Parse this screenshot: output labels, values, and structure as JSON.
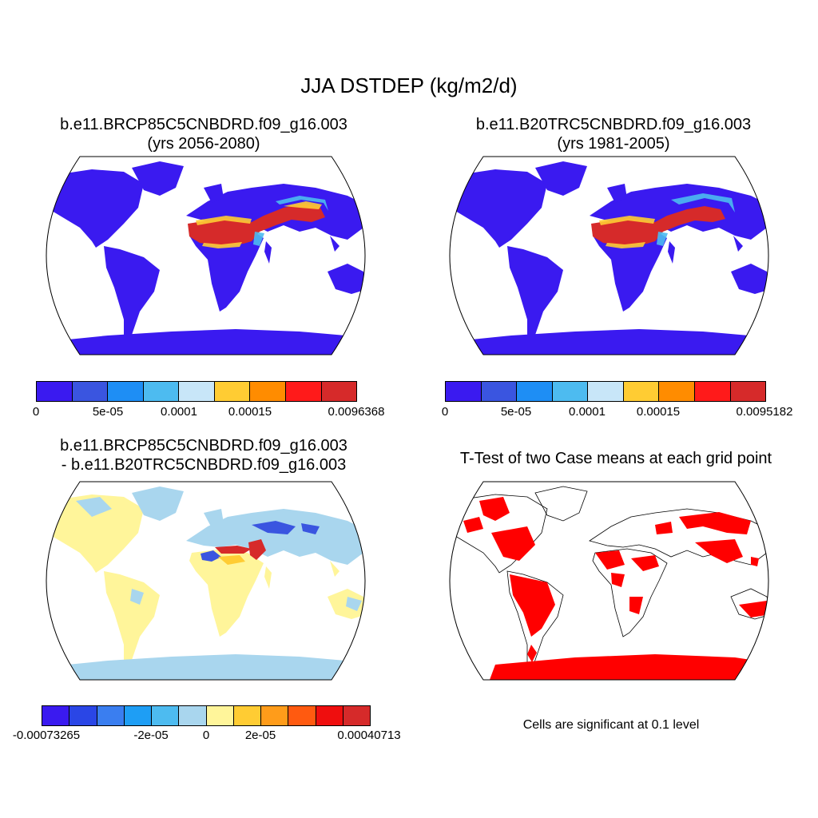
{
  "title": "JJA DSTDEP (kg/m2/d)",
  "panels": [
    {
      "line1": "b.e11.BRCP85C5CNBDRD.f09_g16.003",
      "line2": "(yrs 2056-2080)"
    },
    {
      "line1": "b.e11.B20TRC5CNBDRD.f09_g16.003",
      "line2": "(yrs 1981-2005)"
    },
    {
      "line1": "b.e11.BRCP85C5CNBDRD.f09_g16.003",
      "line2": "- b.e11.B20TRC5CNBDRD.f09_g16.003"
    },
    {
      "line1": "T-Test of two Case means at each grid point"
    }
  ],
  "colorbars": [
    {
      "colors": [
        "#3a1af0",
        "#3a55e0",
        "#1e8ef5",
        "#4dbbf0",
        "#c8e6f8",
        "#ffcc33",
        "#ff8c00",
        "#ff1a1a",
        "#d62a2a"
      ],
      "labels": [
        "0",
        "5e-05",
        "0.0001",
        "0.00015",
        "0.0096368"
      ]
    },
    {
      "colors": [
        "#3a1af0",
        "#3a55e0",
        "#1e8ef5",
        "#4dbbf0",
        "#c8e6f8",
        "#ffcc33",
        "#ff8c00",
        "#ff1a1a",
        "#d62a2a"
      ],
      "labels": [
        "0",
        "5e-05",
        "0.0001",
        "0.00015",
        "0.0095182"
      ]
    },
    {
      "colors": [
        "#3a1af0",
        "#2a46e6",
        "#3a7ef0",
        "#1e9ef5",
        "#4dbbf0",
        "#a9d6ee",
        "#fff59a",
        "#ffcc33",
        "#ff9c1a",
        "#ff5a10",
        "#ef0e0e",
        "#d62a2a"
      ],
      "labels": [
        "-0.00073265",
        "-2e-05",
        "0",
        "2e-05",
        "0.00040713"
      ]
    }
  ],
  "note": "Cells are significant at 0.1 level",
  "map_colors": {
    "land_low": "#3a1af0",
    "desert_high": "#d62a2a",
    "diff_pos": "#fff59a",
    "diff_neg": "#a9d6ee",
    "significant": "#ff0000"
  }
}
